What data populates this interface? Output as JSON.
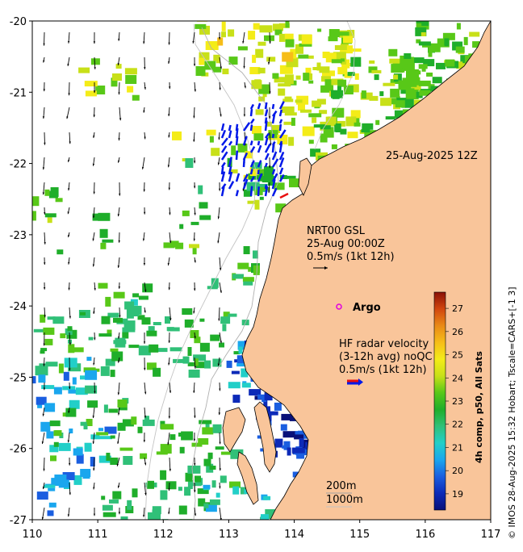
{
  "map": {
    "lon_range": [
      110,
      117
    ],
    "lat_range": [
      -27,
      -20
    ],
    "x_ticks": [
      "110",
      "111",
      "112",
      "113",
      "114",
      "115",
      "116",
      "117"
    ],
    "y_ticks": [
      "-20",
      "-21",
      "-22",
      "-23",
      "-24",
      "-25",
      "-26",
      "-27"
    ],
    "land_color": "#f9c59a",
    "coast_color": "#000000",
    "isobath_color": "#a0a0a0"
  },
  "labels": {
    "date": "25-Aug-2025 12Z",
    "gsl_title": "NRT00 GSL",
    "gsl_time": "25-Aug 00:00Z",
    "gsl_scale": "0.5m/s (1kt 12h)",
    "argo": "Argo",
    "hf_title": "HF radar velocity",
    "hf_avg": "(3-12h avg) noQC",
    "hf_scale": "0.5m/s (1kt 12h)",
    "isobath_200": "200m",
    "isobath_1000": "1000m",
    "side_credit": "© IMOS 28-Aug-2025 15:32 Hobart; Tscale=CARS+[-1 3]"
  },
  "colorbar": {
    "title": "4h comp, p50, All Sats",
    "ticks": [
      "19",
      "20",
      "21",
      "22",
      "23",
      "24",
      "25",
      "26",
      "27"
    ],
    "range": [
      18.3,
      27.7
    ],
    "colors": [
      "#081078",
      "#0c2ab8",
      "#1a5ee0",
      "#1aa6ee",
      "#22cfc8",
      "#30c078",
      "#1fae2a",
      "#58c818",
      "#c8e018",
      "#f4ec18",
      "#f6bd18",
      "#e98a16",
      "#d2460e",
      "#8a1006"
    ]
  },
  "argo_color": "#e000e0",
  "hf_arrow_colors": [
    "#0018e8",
    "#e81010"
  ]
}
